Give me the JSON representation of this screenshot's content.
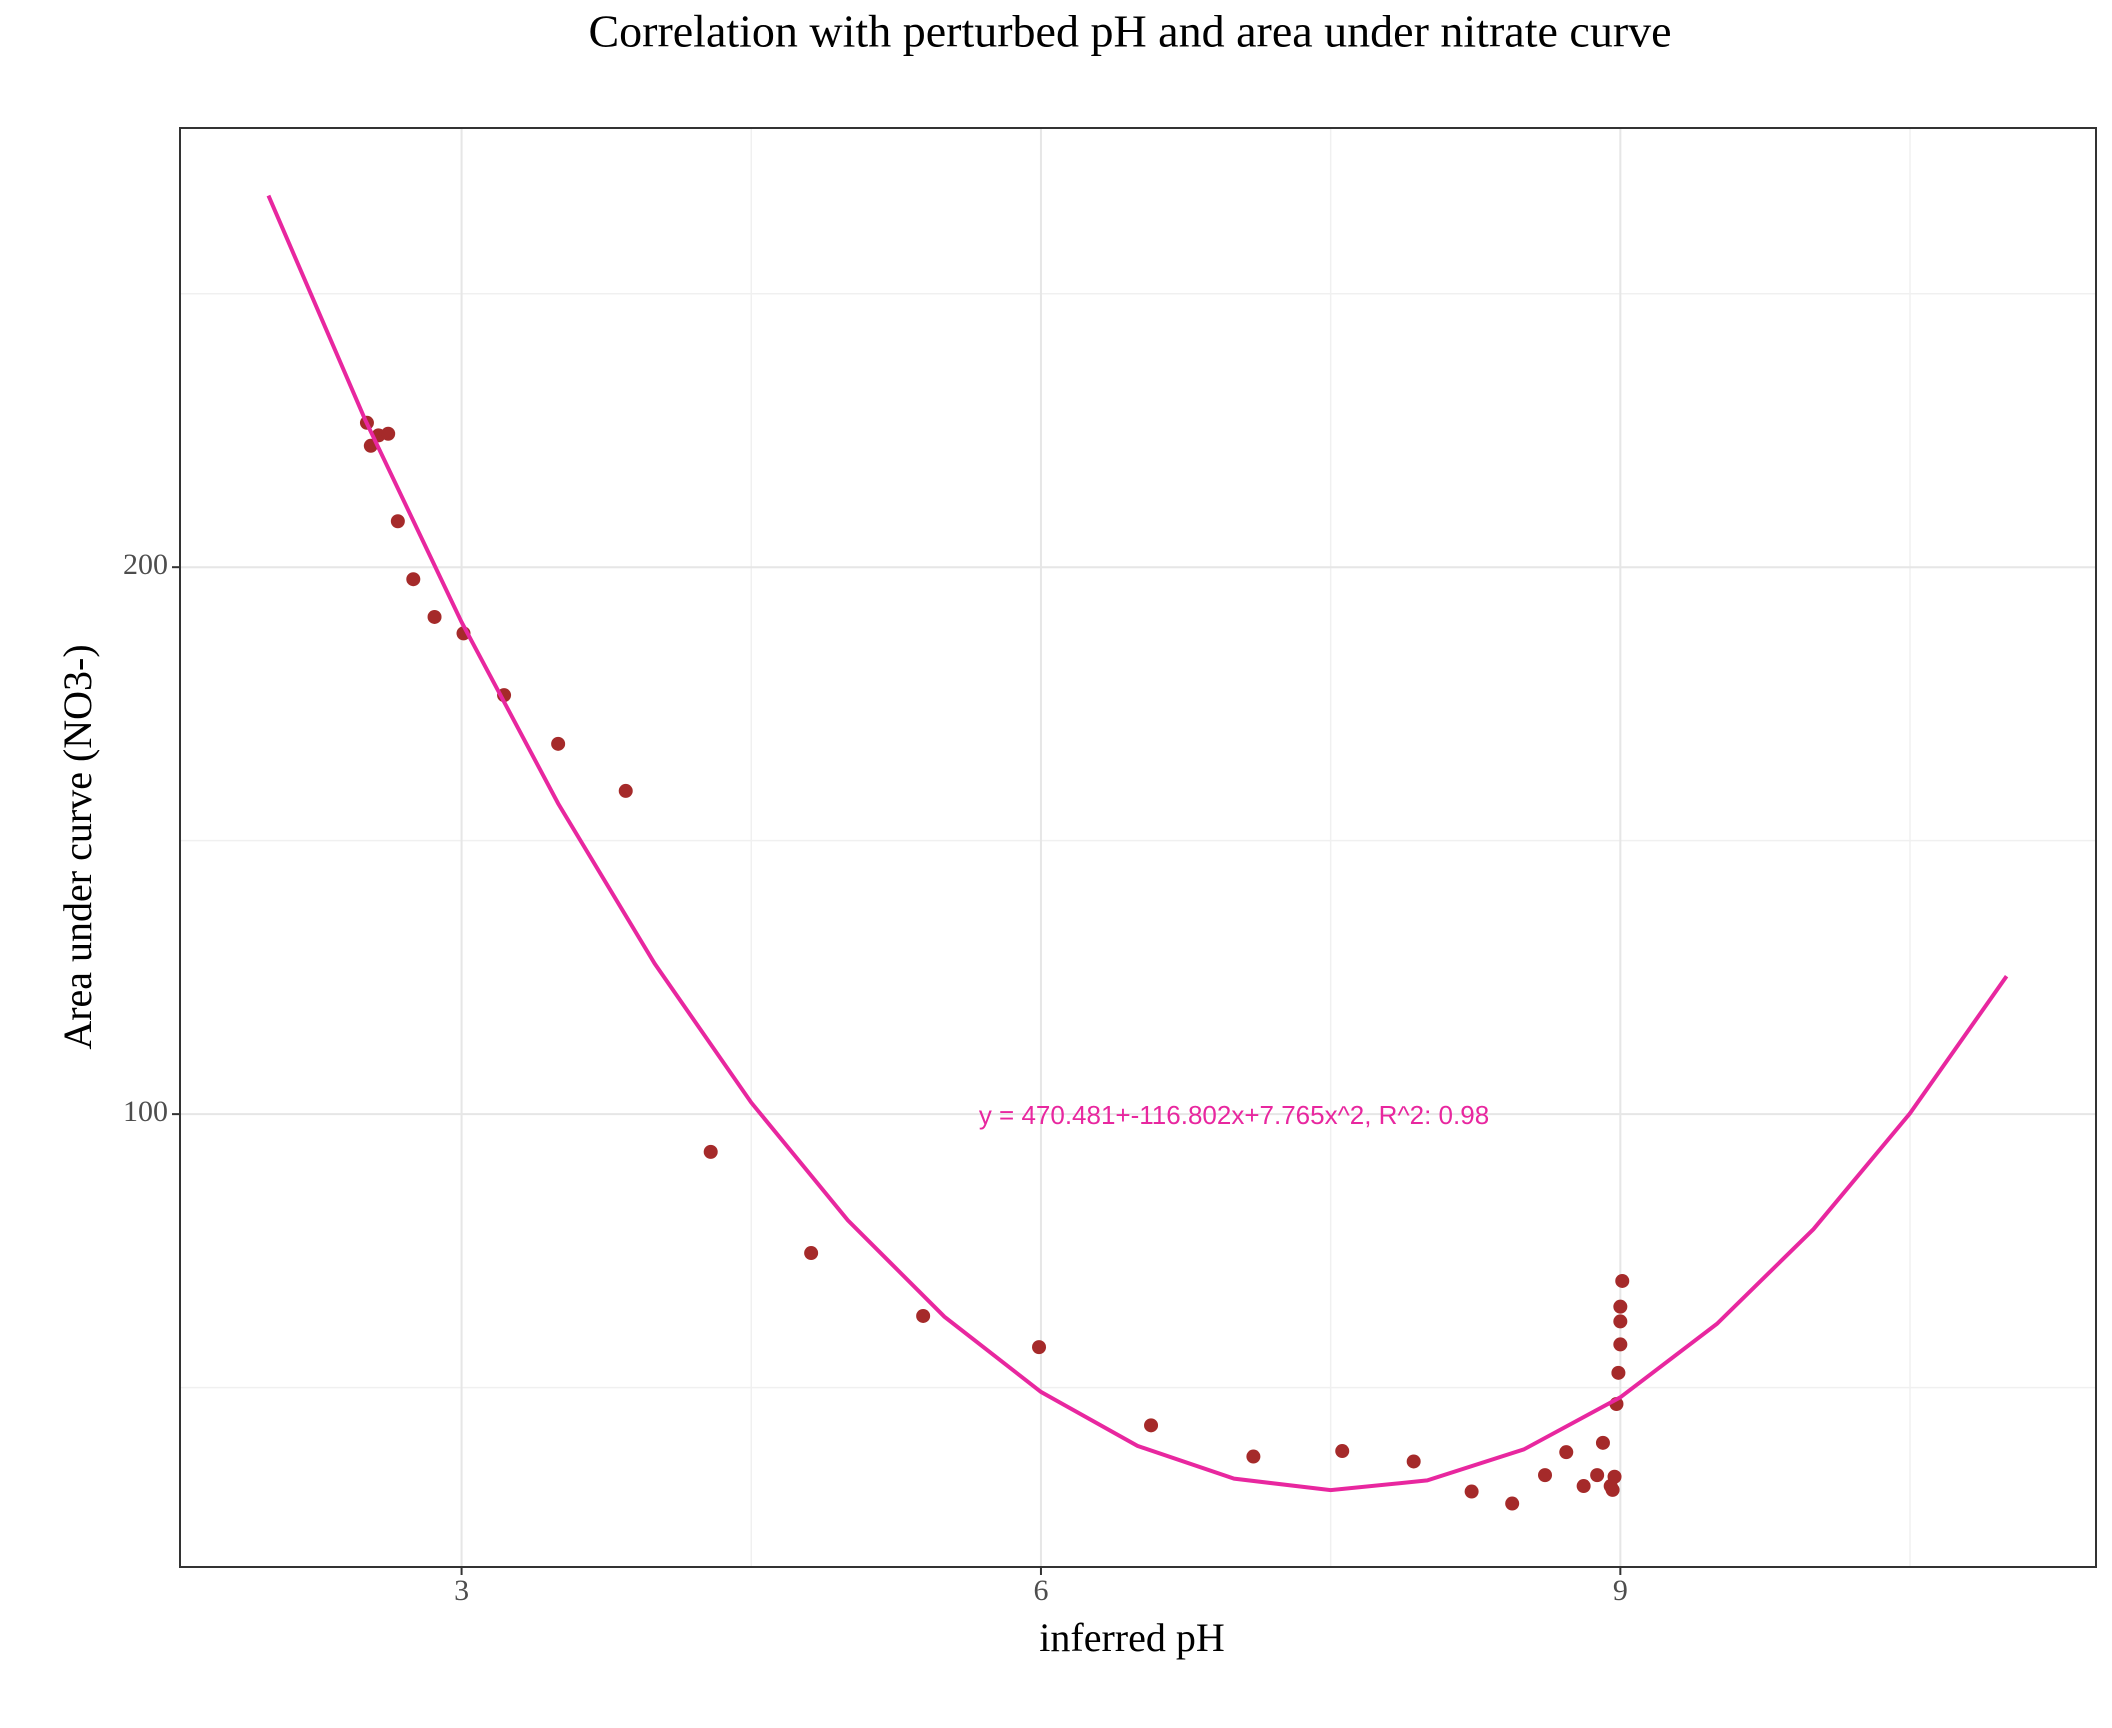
{
  "chart_data": {
    "type": "scatter",
    "title": "Correlation with perturbed pH and area under nitrate curve",
    "x_label": "inferred pH",
    "y_label": "Area under curve (NO3-)",
    "annotation": "y = 470.481+-116.802x+7.765x^2,  R^2: 0.98",
    "xlim": [
      1.542,
      11.463
    ],
    "ylim": [
      17.2,
      280.3
    ],
    "xticks": [
      3,
      6,
      9
    ],
    "yticks": [
      100,
      200
    ],
    "x_minor_grid": [
      4.5,
      7.5,
      10.5
    ],
    "y_minor_grid": [
      50,
      150,
      250
    ],
    "grid": true,
    "series": [
      {
        "name": "observations",
        "color": "#a52a2a",
        "x": [
          2.51,
          2.53,
          2.57,
          2.62,
          2.67,
          2.75,
          2.86,
          3.01,
          3.22,
          3.5,
          3.85,
          4.29,
          4.81,
          5.39,
          5.99,
          6.57,
          7.1,
          7.56,
          7.93,
          8.23,
          8.44,
          8.61,
          8.72,
          8.81,
          8.88,
          8.91,
          8.95,
          8.96,
          8.97,
          8.98,
          8.99,
          9.0,
          9.0,
          9.0,
          9.01
        ],
        "values": [
          226.4,
          222.2,
          224.1,
          224.4,
          208.4,
          197.8,
          190.9,
          187.9,
          176.6,
          167.7,
          159.1,
          93.1,
          74.6,
          63.1,
          57.4,
          43.1,
          37.4,
          38.4,
          36.5,
          31.0,
          28.8,
          34.0,
          38.2,
          32.0,
          34.0,
          39.9,
          32.0,
          31.3,
          33.7,
          47.0,
          52.7,
          57.9,
          62.1,
          64.8,
          69.5
        ]
      },
      {
        "name": "fit",
        "color": "#e8279f",
        "line": true,
        "x": [
          2,
          2.5,
          3,
          3.5,
          4,
          4.5,
          5,
          5.5,
          6,
          6.5,
          7,
          7.5,
          8,
          8.5,
          9,
          9.5,
          10,
          10.5,
          11
        ],
        "values": [
          267.94,
          227.01,
          189.96,
          156.8,
          127.51,
          102.11,
          80.6,
          62.96,
          49.21,
          39.34,
          33.35,
          31.25,
          33.03,
          38.69,
          48.23,
          61.65,
          78.96,
          100.15,
          125.22
        ]
      }
    ]
  }
}
